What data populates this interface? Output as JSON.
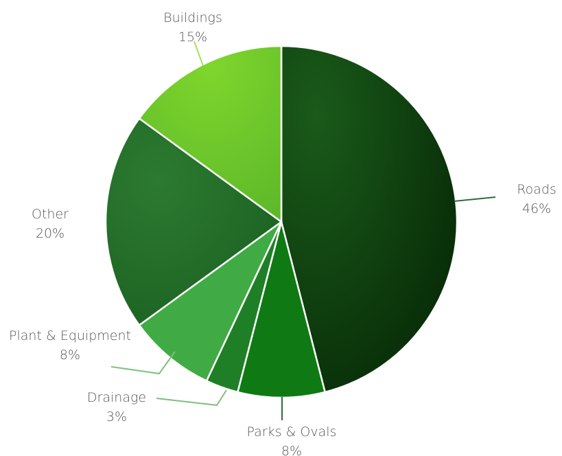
{
  "chart_data": {
    "type": "pie",
    "start_angle_deg": 0,
    "direction": "clockwise",
    "slices": [
      {
        "label": "Roads",
        "percent_text": "46%",
        "value": 46,
        "color": "#0b3d0b"
      },
      {
        "label": "Parks & Ovals",
        "percent_text": "8%",
        "value": 8,
        "color": "#0f7a14"
      },
      {
        "label": "Drainage",
        "percent_text": "3%",
        "value": 3,
        "color": "#1f7f27"
      },
      {
        "label": "Plant & Equipment",
        "percent_text": "8%",
        "value": 8,
        "color": "#40ab45"
      },
      {
        "label": "Other",
        "percent_text": "20%",
        "value": 20,
        "color": "#237029"
      },
      {
        "label": "Buildings",
        "percent_text": "15%",
        "value": 15,
        "color": "#72c92a"
      }
    ],
    "legend": "none",
    "labels": "outside with leader lines"
  }
}
